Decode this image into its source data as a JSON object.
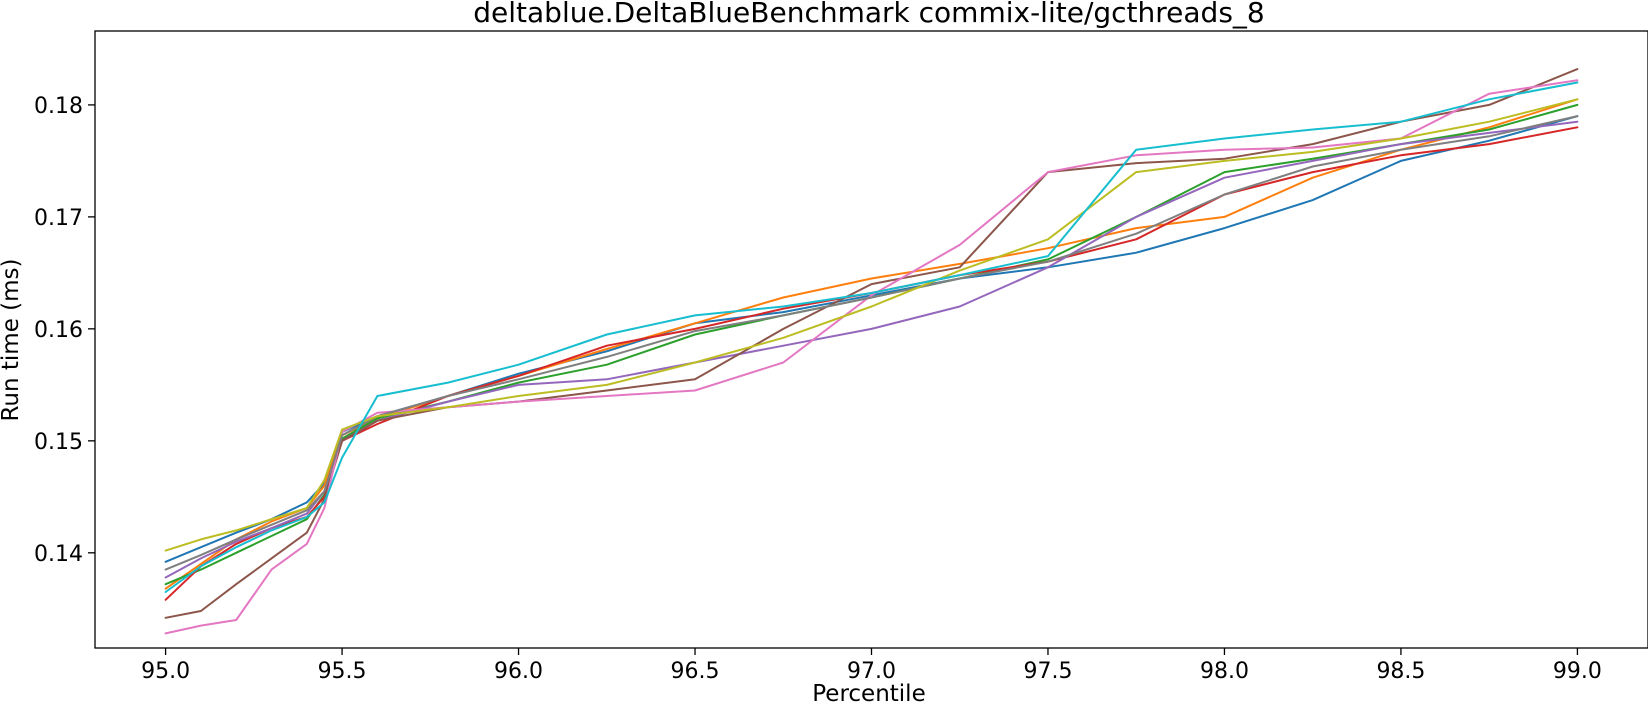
{
  "chart_data": {
    "type": "line",
    "title": "deltablue.DeltaBlueBenchmark commix-lite/gcthreads_8",
    "xlabel": "Percentile",
    "ylabel": "Run time (ms)",
    "xlim": [
      94.8,
      99.2
    ],
    "ylim": [
      0.1315,
      0.1866
    ],
    "xticks": [
      95.0,
      95.5,
      96.0,
      96.5,
      97.0,
      97.5,
      98.0,
      98.5,
      99.0
    ],
    "yticks": [
      0.14,
      0.15,
      0.16,
      0.17,
      0.18
    ],
    "xtick_labels": [
      "95.0",
      "95.5",
      "96.0",
      "96.5",
      "97.0",
      "97.5",
      "98.0",
      "98.5",
      "99.0"
    ],
    "ytick_labels": [
      "0.14",
      "0.15",
      "0.16",
      "0.17",
      "0.18"
    ],
    "grid": false,
    "legend": "none",
    "x": [
      95.0,
      95.1,
      95.2,
      95.3,
      95.4,
      95.45,
      95.5,
      95.6,
      95.8,
      96.0,
      96.25,
      96.5,
      96.75,
      97.0,
      97.25,
      97.5,
      97.75,
      98.0,
      98.25,
      98.5,
      98.75,
      99.0
    ],
    "series": [
      {
        "color": "#1f77b4",
        "values": [
          0.1392,
          0.1405,
          0.1418,
          0.143,
          0.1445,
          0.1462,
          0.1508,
          0.1522,
          0.154,
          0.156,
          0.158,
          0.1605,
          0.1615,
          0.163,
          0.1645,
          0.1655,
          0.1668,
          0.169,
          0.1715,
          0.175,
          0.1768,
          0.179
        ]
      },
      {
        "color": "#ff7f0e",
        "values": [
          0.1368,
          0.139,
          0.1412,
          0.1428,
          0.144,
          0.146,
          0.1505,
          0.152,
          0.154,
          0.1558,
          0.1582,
          0.1605,
          0.1628,
          0.1645,
          0.1658,
          0.1672,
          0.169,
          0.17,
          0.1735,
          0.176,
          0.178,
          0.1805
        ]
      },
      {
        "color": "#2ca02c",
        "values": [
          0.1372,
          0.1385,
          0.14,
          0.1415,
          0.143,
          0.1452,
          0.1502,
          0.152,
          0.1535,
          0.1552,
          0.1568,
          0.1595,
          0.1612,
          0.1628,
          0.1645,
          0.1662,
          0.17,
          0.174,
          0.1752,
          0.1765,
          0.1778,
          0.18
        ]
      },
      {
        "color": "#d62728",
        "values": [
          0.1358,
          0.1388,
          0.1408,
          0.1422,
          0.1432,
          0.145,
          0.15,
          0.1515,
          0.154,
          0.1558,
          0.1585,
          0.16,
          0.1618,
          0.1632,
          0.1648,
          0.166,
          0.168,
          0.172,
          0.174,
          0.1755,
          0.1765,
          0.178
        ]
      },
      {
        "color": "#9467bd",
        "values": [
          0.1378,
          0.1395,
          0.141,
          0.1422,
          0.1435,
          0.1455,
          0.15,
          0.1518,
          0.1535,
          0.155,
          0.1555,
          0.157,
          0.1585,
          0.16,
          0.162,
          0.1655,
          0.17,
          0.1735,
          0.175,
          0.1765,
          0.1775,
          0.1785
        ]
      },
      {
        "color": "#8c564b",
        "values": [
          0.1342,
          0.1348,
          0.1372,
          0.1395,
          0.1418,
          0.1448,
          0.15,
          0.1518,
          0.153,
          0.1535,
          0.1545,
          0.1555,
          0.16,
          0.164,
          0.1655,
          0.174,
          0.1748,
          0.1752,
          0.1765,
          0.1785,
          0.18,
          0.1832
        ]
      },
      {
        "color": "#e377c2",
        "values": [
          0.1328,
          0.1335,
          0.134,
          0.1385,
          0.1408,
          0.144,
          0.1508,
          0.1525,
          0.153,
          0.1535,
          0.154,
          0.1545,
          0.157,
          0.163,
          0.1675,
          0.174,
          0.1755,
          0.176,
          0.1762,
          0.177,
          0.181,
          0.1822
        ]
      },
      {
        "color": "#7f7f7f",
        "values": [
          0.1385,
          0.1398,
          0.1412,
          0.1425,
          0.1438,
          0.1455,
          0.1505,
          0.1522,
          0.154,
          0.1555,
          0.1575,
          0.1598,
          0.1612,
          0.1628,
          0.1645,
          0.166,
          0.1685,
          0.172,
          0.1745,
          0.176,
          0.1772,
          0.179
        ]
      },
      {
        "color": "#bcbd22",
        "values": [
          0.1402,
          0.1412,
          0.142,
          0.143,
          0.144,
          0.1465,
          0.151,
          0.1522,
          0.153,
          0.154,
          0.155,
          0.157,
          0.1592,
          0.162,
          0.1652,
          0.168,
          0.174,
          0.175,
          0.1758,
          0.177,
          0.1785,
          0.1805
        ]
      },
      {
        "color": "#17becf",
        "values": [
          0.1365,
          0.1388,
          0.1405,
          0.142,
          0.1432,
          0.1445,
          0.1485,
          0.154,
          0.1552,
          0.1568,
          0.1595,
          0.1612,
          0.162,
          0.1632,
          0.1648,
          0.1665,
          0.176,
          0.177,
          0.1778,
          0.1785,
          0.1805,
          0.182
        ]
      }
    ]
  }
}
